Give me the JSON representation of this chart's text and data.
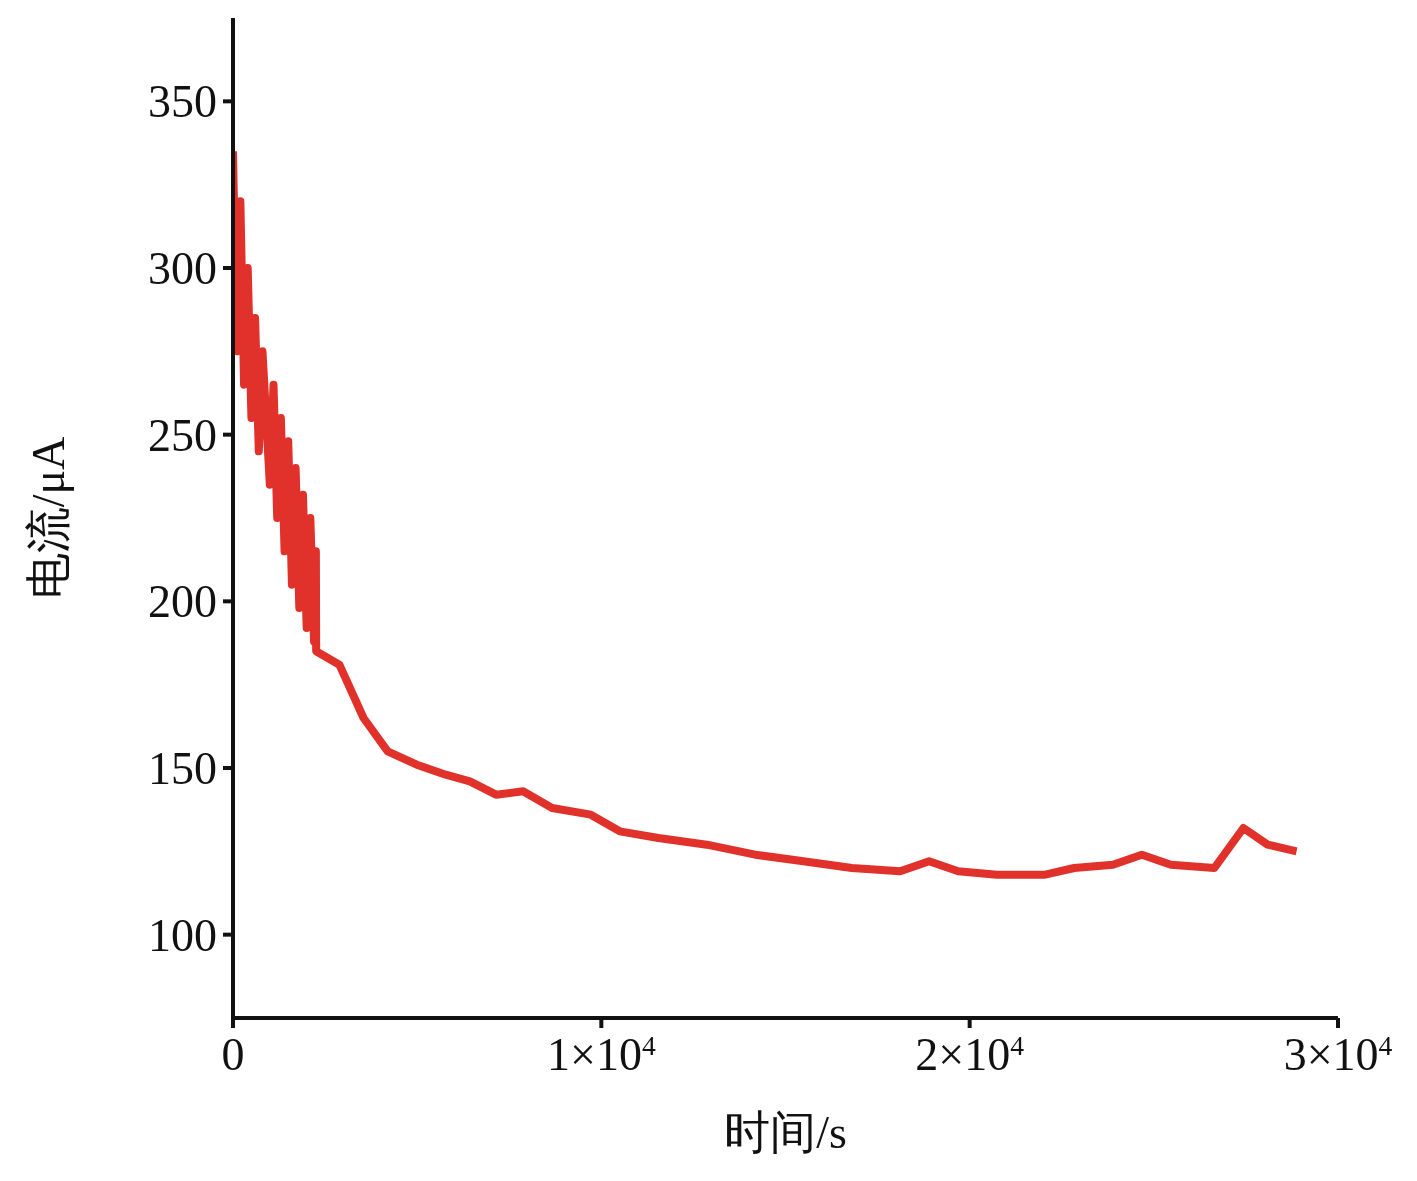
{
  "chart_data": {
    "type": "line",
    "xlabel": "时间/s",
    "ylabel": "电流/μA",
    "color": "#e0312a",
    "x": [
      0,
      100,
      200,
      300,
      400,
      500,
      600,
      700,
      800,
      1000,
      1100,
      1200,
      1300,
      1400,
      1500,
      1600,
      1700,
      1800,
      1900,
      2000,
      2100,
      2200,
      2250,
      2258,
      2888,
      3544,
      4200,
      4988,
      5775,
      6431,
      7140,
      7875,
      8663,
      9713,
      10500,
      11550,
      12863,
      14175,
      15488,
      16800,
      18113,
      18900,
      19688,
      20738,
      22050,
      22838,
      23888,
      24675,
      25463,
      26644,
      27431,
      28088,
      28875
    ],
    "values": [
      335,
      275,
      320,
      265,
      300,
      255,
      285,
      245,
      275,
      235,
      265,
      225,
      255,
      215,
      248,
      205,
      240,
      198,
      232,
      192,
      225,
      188,
      215,
      185,
      181,
      165,
      155,
      151,
      148,
      146,
      142,
      143,
      138,
      136,
      131,
      129,
      127,
      124,
      122,
      120,
      119,
      122,
      119,
      118,
      118,
      120,
      121,
      124,
      121,
      120,
      132,
      127,
      125
    ],
    "xlim": [
      0,
      30000
    ],
    "ylim": [
      75,
      375
    ],
    "xticks": [
      0,
      {
        "value": 10000,
        "label": "1×10$^{4}$"
      },
      {
        "value": 20000,
        "label": "2×10$^{4}$"
      },
      {
        "value": 30000,
        "label": "3×10$^{4}$"
      }
    ],
    "yticks": [
      100,
      150,
      200,
      250,
      300,
      350
    ]
  }
}
